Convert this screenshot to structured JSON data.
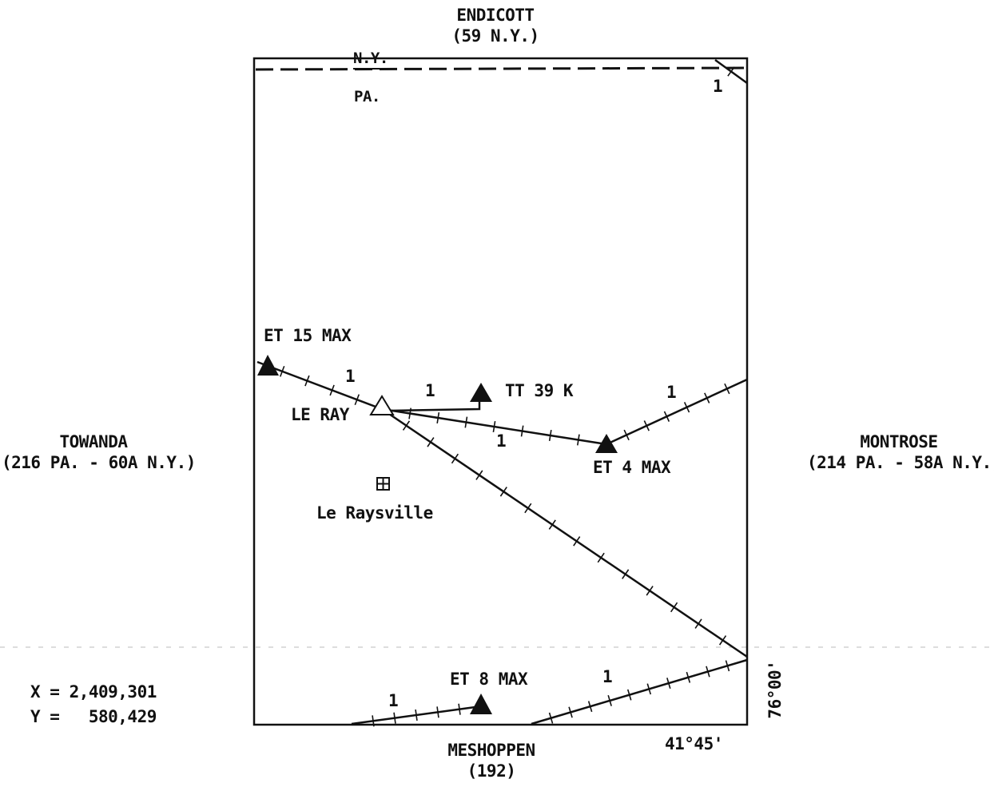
{
  "adjoining_sheets": {
    "north": {
      "name": "ENDICOTT",
      "code": "(59 N.Y.)"
    },
    "south": {
      "name": "MESHOPPEN",
      "code": "(192)"
    },
    "west": {
      "name": "TOWANDA",
      "code": "(216 PA. - 60A N.Y.)"
    },
    "east": {
      "name": "MONTROSE",
      "code": "(214 PA. - 58A N.Y.)"
    }
  },
  "state_line": {
    "north_label": "N.Y.",
    "south_label": "PA."
  },
  "stations": {
    "et15": "ET 15 MAX",
    "tt39": "TT 39 K",
    "leray": "LE RAY",
    "et4": "ET 4 MAX",
    "et8": "ET 8 MAX"
  },
  "town": {
    "name": "Le Raysville"
  },
  "line_labels": {
    "l1": "1",
    "l2": "1",
    "l3": "1",
    "l4": "1",
    "l5": "1",
    "l6": "1",
    "l7": "1"
  },
  "coordinates": {
    "x": "X = 2,409,301",
    "y": "Y =   580,429"
  },
  "corner": {
    "latitude": "41°45'",
    "longitude": "76°00'"
  },
  "colors": {
    "ink": "#111111",
    "paper": "#ffffff"
  }
}
